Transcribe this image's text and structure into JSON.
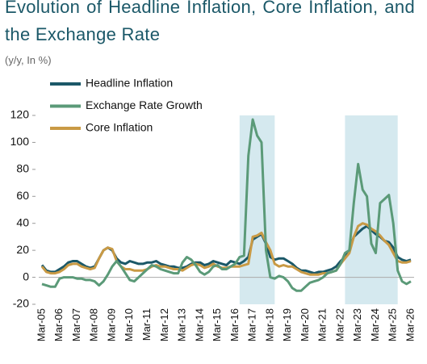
{
  "chart_data": {
    "type": "line",
    "title": "Evolution of Headline Inflation, Core Inflation, and the Exchange Rate",
    "subtitle": "(y/y, In %)",
    "categories": [
      "Mar-05",
      null,
      null,
      null,
      "Mar-06",
      null,
      null,
      null,
      "Mar-07",
      null,
      null,
      null,
      "Mar-08",
      null,
      null,
      null,
      "Mar-09",
      null,
      null,
      null,
      "Mar-10",
      null,
      null,
      null,
      "Mar-11",
      null,
      null,
      null,
      "Mar-12",
      null,
      null,
      null,
      "Mar-13",
      null,
      null,
      null,
      "Mar-14",
      null,
      null,
      null,
      "Mar-15",
      null,
      null,
      null,
      "Mar-16",
      null,
      null,
      null,
      "Mar-17",
      null,
      null,
      null,
      "Mar-18",
      null,
      null,
      null,
      "Mar-19",
      null,
      null,
      null,
      "Mar-20",
      null,
      null,
      null,
      "Mar-21",
      null,
      null,
      null,
      "Mar-22",
      null,
      null,
      null,
      "Mar-23",
      null,
      null,
      null,
      "Mar-24",
      null,
      null,
      null,
      "Mar-25",
      null,
      null,
      null,
      "Mar-26"
    ],
    "series": [
      {
        "name": "Headline Inflation",
        "color": "#1b5868",
        "values": [
          9,
          5,
          4,
          4,
          6,
          8,
          11,
          12,
          12,
          10,
          8,
          7,
          8,
          14,
          20,
          22,
          20,
          14,
          11,
          10,
          12,
          11,
          10,
          10,
          11,
          11,
          12,
          10,
          9,
          8,
          8,
          7,
          7,
          8,
          10,
          11,
          11,
          9,
          10,
          12,
          11,
          10,
          9,
          12,
          11,
          10,
          12,
          15,
          28,
          30,
          32,
          25,
          15,
          13,
          14,
          14,
          12,
          10,
          7,
          5,
          5,
          4,
          3,
          4,
          4,
          5,
          6,
          8,
          12,
          15,
          20,
          30,
          33,
          36,
          38,
          35,
          32,
          30,
          27,
          26,
          22,
          15,
          13,
          12,
          13
        ]
      },
      {
        "name": "Exchange Rate Growth",
        "color": "#5b9a78",
        "values": [
          -5,
          -6,
          -7,
          -7,
          -1,
          0,
          0,
          0,
          -1,
          -1,
          -2,
          -2,
          -3,
          -6,
          -3,
          2,
          8,
          12,
          8,
          3,
          -2,
          -3,
          0,
          3,
          6,
          9,
          8,
          6,
          5,
          4,
          3,
          3,
          11,
          15,
          13,
          9,
          4,
          2,
          4,
          8,
          9,
          6,
          6,
          8,
          10,
          15,
          16,
          90,
          117,
          105,
          100,
          20,
          0,
          -1,
          1,
          0,
          -3,
          -8,
          -10,
          -10,
          -7,
          -4,
          -3,
          -2,
          0,
          3,
          4,
          5,
          10,
          18,
          20,
          55,
          84,
          65,
          60,
          25,
          18,
          55,
          58,
          61,
          40,
          5,
          -3,
          -5,
          -3
        ]
      },
      {
        "name": "Core Inflation",
        "color": "#c99a45",
        "values": [
          8,
          4,
          3,
          3,
          4,
          6,
          9,
          10,
          10,
          8,
          7,
          6,
          7,
          14,
          20,
          22,
          21,
          12,
          8,
          6,
          6,
          5,
          5,
          5,
          6,
          8,
          9,
          8,
          8,
          7,
          6,
          6,
          5,
          7,
          9,
          10,
          9,
          7,
          8,
          10,
          8,
          7,
          7,
          8,
          8,
          8,
          9,
          10,
          30,
          31,
          33,
          26,
          20,
          10,
          8,
          9,
          8,
          8,
          6,
          4,
          3,
          2,
          2,
          2,
          3,
          3,
          4,
          5,
          10,
          14,
          18,
          30,
          38,
          40,
          39,
          36,
          34,
          31,
          27,
          24,
          18,
          12,
          11,
          11,
          12
        ]
      }
    ],
    "ylim": [
      -20,
      120
    ],
    "yticks": [
      -20,
      0,
      20,
      40,
      60,
      80,
      100,
      120
    ],
    "shaded": [
      [
        45,
        53
      ],
      [
        69,
        81
      ]
    ],
    "shade_color": "#d5e9ef"
  }
}
